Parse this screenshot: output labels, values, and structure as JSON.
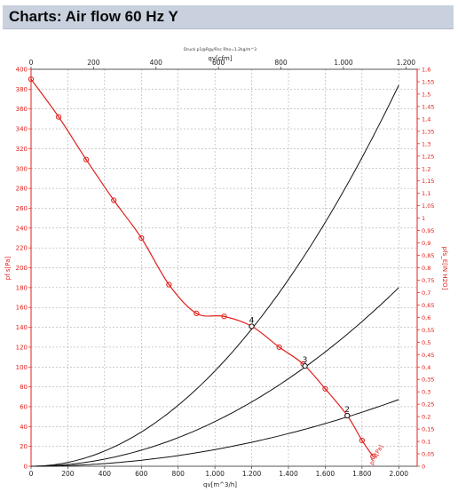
{
  "header": {
    "title": "Charts: Air flow 60 Hz Y"
  },
  "colors": {
    "curve": "#e0201c",
    "system": "#111111",
    "axis_right": "#e0201c",
    "grid": "#9a9a9a",
    "header_bg": "#c9d1de"
  },
  "chart_data": {
    "type": "line",
    "title": "",
    "subtitle": "Druck p1@Rgy/Rsc Rho=1.2kg/m^3",
    "grid": true,
    "axes": {
      "x_bottom": {
        "label": "qv[m^3/h]",
        "range": [
          0,
          2100
        ],
        "ticks": [
          0,
          200,
          400,
          600,
          800,
          1000,
          1200,
          1400,
          1600,
          1800,
          2000
        ],
        "tick_labels": [
          "0",
          "200",
          "400",
          "600",
          "800",
          "1.000",
          "1.200",
          "1.400",
          "1.600",
          "1.800",
          "2.000"
        ]
      },
      "x_top": {
        "label": "qv[cfm]",
        "range": [
          0,
          1236
        ],
        "ticks": [
          0,
          200,
          400,
          600,
          800,
          1000,
          1200
        ],
        "tick_labels": [
          "0",
          "200",
          "400",
          "600",
          "800",
          "1.000",
          "1.200"
        ]
      },
      "y_left": {
        "label": "pf s[Pa]",
        "range": [
          0,
          400
        ],
        "ticks": [
          0,
          20,
          40,
          60,
          80,
          100,
          120,
          140,
          160,
          180,
          200,
          220,
          240,
          260,
          280,
          300,
          320,
          340,
          360,
          380,
          400
        ],
        "tick_labels": [
          "0",
          "20",
          "40",
          "60",
          "80",
          "100",
          "120",
          "140",
          "160",
          "180",
          "200",
          "220",
          "240",
          "260",
          "280",
          "300",
          "320",
          "340",
          "360",
          "380",
          "400"
        ]
      },
      "y_right": {
        "label": "pfs_E[IN H2O]",
        "range": [
          0,
          1.6
        ],
        "ticks": [
          0,
          0.05,
          0.1,
          0.15,
          0.2,
          0.25,
          0.3,
          0.35,
          0.4,
          0.45,
          0.5,
          0.55,
          0.6,
          0.65,
          0.7,
          0.75,
          0.8,
          0.85,
          0.9,
          0.95,
          1.0,
          1.05,
          1.1,
          1.15,
          1.2,
          1.25,
          1.3,
          1.35,
          1.4,
          1.45,
          1.5,
          1.55,
          1.6
        ],
        "tick_labels": [
          "0",
          "0,05",
          "0,1",
          "0,15",
          "0,2",
          "0,25",
          "0,3",
          "0,35",
          "0,4",
          "0,45",
          "0,5",
          "0,55",
          "0,6",
          "0,65",
          "0,7",
          "0,75",
          "0,8",
          "0,85",
          "0,9",
          "0,95",
          "1",
          "1,05",
          "1,1",
          "1,15",
          "1,2",
          "1,25",
          "1,3",
          "1,35",
          "1,4",
          "1,45",
          "1,5",
          "1,55",
          "1,6"
        ]
      }
    },
    "series": [
      {
        "name": "",
        "role": "fan-curve",
        "x": [
          0,
          150,
          300,
          450,
          600,
          750,
          900,
          1050,
          1200,
          1350,
          1480,
          1600,
          1720,
          1800,
          1860
        ],
        "y": [
          390,
          352,
          309,
          268,
          230,
          183,
          154,
          151,
          141,
          120,
          103,
          78,
          51,
          26,
          10
        ],
        "marker_x": [
          0,
          150,
          300,
          450,
          600,
          750,
          900,
          1050,
          1200,
          1350,
          1480,
          1600,
          1720,
          1800,
          1860
        ]
      },
      {
        "name": "",
        "role": "system-curve",
        "k": 9.6e-05,
        "x_max": 2000,
        "end_label": ""
      },
      {
        "name": "",
        "role": "system-curve",
        "k": 4.5e-05,
        "x_max": 2000,
        "end_label": ""
      },
      {
        "name": "",
        "role": "system-curve",
        "k": 1.68e-05,
        "x_max": 2000,
        "end_label": ""
      }
    ],
    "operating_points": [
      {
        "label": "4",
        "x": 1200,
        "y": 141
      },
      {
        "label": "3",
        "x": 1490,
        "y": 101
      },
      {
        "label": "2",
        "x": 1720,
        "y": 51
      }
    ],
    "annotations": [
      {
        "text": "pf s[Pa]",
        "near": "fan curve end, bottom-right"
      }
    ]
  }
}
